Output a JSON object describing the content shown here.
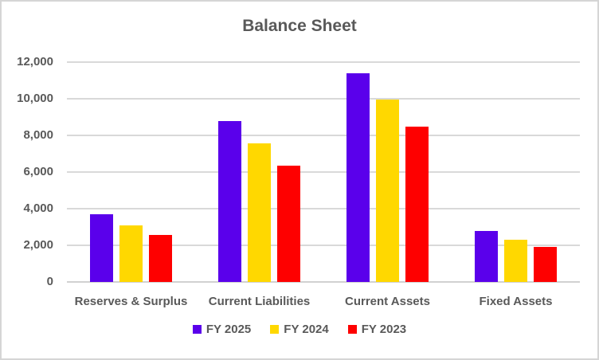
{
  "chart_data": {
    "type": "bar",
    "title": "Balance Sheet",
    "categories": [
      "Reserves & Surplus",
      "Current Liabilities",
      "Current Assets",
      "Fixed Assets"
    ],
    "series": [
      {
        "name": "FY 2025",
        "color": "#5A00EB",
        "values": [
          3700,
          8800,
          11400,
          2800
        ]
      },
      {
        "name": "FY 2024",
        "color": "#FFD800",
        "values": [
          3100,
          7550,
          9950,
          2300
        ]
      },
      {
        "name": "FY 2023",
        "color": "#FE0000",
        "values": [
          2550,
          6350,
          8500,
          1900
        ]
      }
    ],
    "ylim": [
      0,
      12000
    ],
    "ytick_step": 2000,
    "yticks": [
      "0",
      "2,000",
      "4,000",
      "6,000",
      "8,000",
      "10,000",
      "12,000"
    ],
    "xlabel": "",
    "ylabel": "",
    "grid": true,
    "legend_position": "bottom",
    "colors": {
      "text": "#595959",
      "gridline": "#D9D9D9",
      "axis": "#D1D1D1",
      "border": "#D5D5D5",
      "background": "#FFFFFF"
    }
  }
}
